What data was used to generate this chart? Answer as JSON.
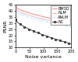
{
  "title": "",
  "xlabel": "Noise variance",
  "ylabel": "PSNR",
  "xlim": [
    0,
    200
  ],
  "ylim": [
    10,
    45
  ],
  "lines": [
    {
      "label": "BM3D",
      "color": "#ee8888",
      "linestyle": "-",
      "marker": null,
      "linewidth": 0.7,
      "start_y": 43.5,
      "end_y": 30.5
    },
    {
      "label": "NLM",
      "color": "#ffbbbb",
      "linestyle": "-",
      "marker": null,
      "linewidth": 0.7,
      "start_y": 41.5,
      "end_y": 28.5
    },
    {
      "label": "ANLM",
      "color": "#aaeeff",
      "linestyle": "--",
      "marker": null,
      "linewidth": 0.7,
      "start_y": 40.0,
      "end_y": 27.0
    },
    {
      "label": "NC",
      "color": "#444444",
      "linestyle": "-",
      "marker": "s",
      "markersize": 1.2,
      "linewidth": 0.7,
      "start_y": 33.0,
      "end_y": 13.0
    }
  ],
  "xticks": [
    0,
    50,
    100,
    150,
    200
  ],
  "yticks": [
    10,
    15,
    20,
    25,
    30,
    35,
    40,
    45
  ],
  "legend_fontsize": 3.5,
  "tick_fontsize": 3.5,
  "label_fontsize": 4.5,
  "background_color": "#ffffff",
  "grid": false
}
